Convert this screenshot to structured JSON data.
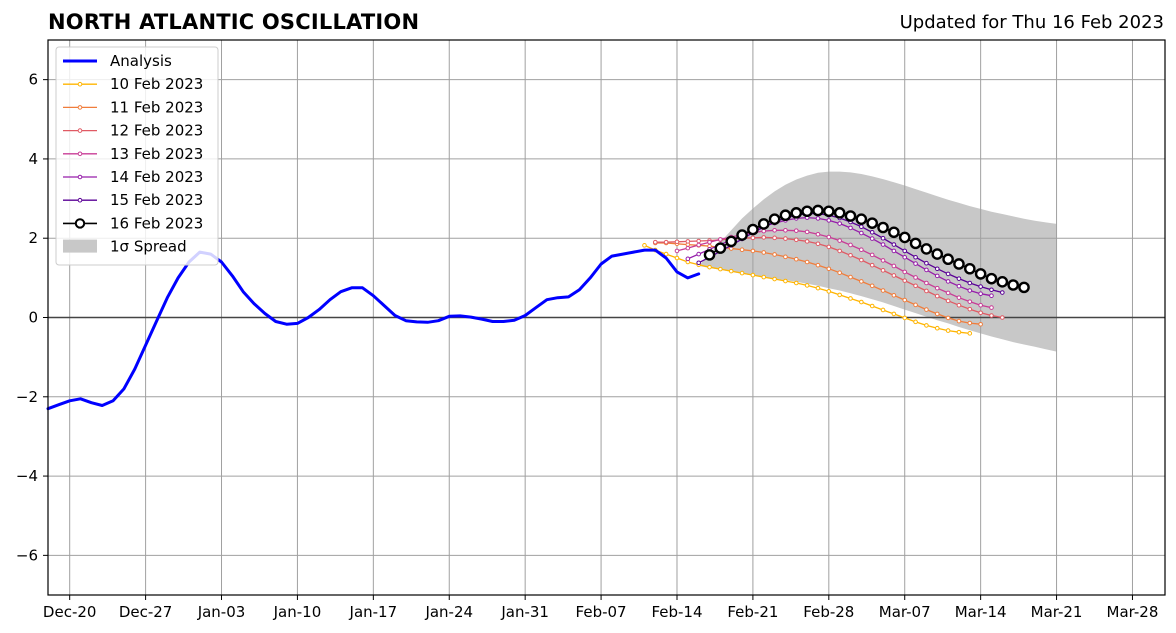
{
  "header": {
    "title": "NORTH ATLANTIC OSCILLATION",
    "subtitle": "Updated for Thu 16 Feb 2023"
  },
  "chart_data": {
    "type": "line",
    "title": "NORTH ATLANTIC OSCILLATION",
    "subtitle": "Updated for Thu 16 Feb 2023",
    "xlabel": "",
    "ylabel": "",
    "x_start": "2022-12-18",
    "xlim": [
      "2022-12-18",
      "2023-03-31"
    ],
    "ylim": [
      -7,
      7
    ],
    "x_ticks": [
      {
        "date": "2022-12-20",
        "label": "Dec-20"
      },
      {
        "date": "2022-12-27",
        "label": "Dec-27"
      },
      {
        "date": "2023-01-03",
        "label": "Jan-03"
      },
      {
        "date": "2023-01-10",
        "label": "Jan-10"
      },
      {
        "date": "2023-01-17",
        "label": "Jan-17"
      },
      {
        "date": "2023-01-24",
        "label": "Jan-24"
      },
      {
        "date": "2023-01-31",
        "label": "Jan-31"
      },
      {
        "date": "2023-02-07",
        "label": "Feb-07"
      },
      {
        "date": "2023-02-14",
        "label": "Feb-14"
      },
      {
        "date": "2023-02-21",
        "label": "Feb-21"
      },
      {
        "date": "2023-02-28",
        "label": "Feb-28"
      },
      {
        "date": "2023-03-07",
        "label": "Mar-07"
      },
      {
        "date": "2023-03-14",
        "label": "Mar-14"
      },
      {
        "date": "2023-03-21",
        "label": "Mar-21"
      },
      {
        "date": "2023-03-28",
        "label": "Mar-28"
      }
    ],
    "y_ticks": [
      {
        "value": -6,
        "label": "−6"
      },
      {
        "value": -4,
        "label": "−4"
      },
      {
        "value": -2,
        "label": "−2"
      },
      {
        "value": 0,
        "label": "0"
      },
      {
        "value": 2,
        "label": "2"
      },
      {
        "value": 4,
        "label": "4"
      },
      {
        "value": 6,
        "label": "6"
      }
    ],
    "grid": true,
    "legend_position": "top-left",
    "analysis": {
      "name": "Analysis",
      "color": "#0000ff",
      "points": [
        [
          "2022-12-18",
          -2.3
        ],
        [
          "2022-12-19",
          -2.2
        ],
        [
          "2022-12-20",
          -2.1
        ],
        [
          "2022-12-21",
          -2.05
        ],
        [
          "2022-12-22",
          -2.15
        ],
        [
          "2022-12-23",
          -2.22
        ],
        [
          "2022-12-24",
          -2.1
        ],
        [
          "2022-12-25",
          -1.8
        ],
        [
          "2022-12-26",
          -1.3
        ],
        [
          "2022-12-27",
          -0.7
        ],
        [
          "2022-12-28",
          -0.1
        ],
        [
          "2022-12-29",
          0.5
        ],
        [
          "2022-12-30",
          1.0
        ],
        [
          "2022-12-31",
          1.4
        ],
        [
          "2023-01-01",
          1.65
        ],
        [
          "2023-01-02",
          1.6
        ],
        [
          "2023-01-03",
          1.4
        ],
        [
          "2023-01-04",
          1.05
        ],
        [
          "2023-01-05",
          0.65
        ],
        [
          "2023-01-06",
          0.35
        ],
        [
          "2023-01-07",
          0.1
        ],
        [
          "2023-01-08",
          -0.1
        ],
        [
          "2023-01-09",
          -0.17
        ],
        [
          "2023-01-10",
          -0.15
        ],
        [
          "2023-01-11",
          0.0
        ],
        [
          "2023-01-12",
          0.2
        ],
        [
          "2023-01-13",
          0.45
        ],
        [
          "2023-01-14",
          0.65
        ],
        [
          "2023-01-15",
          0.75
        ],
        [
          "2023-01-16",
          0.75
        ],
        [
          "2023-01-17",
          0.55
        ],
        [
          "2023-01-18",
          0.3
        ],
        [
          "2023-01-19",
          0.05
        ],
        [
          "2023-01-20",
          -0.08
        ],
        [
          "2023-01-21",
          -0.11
        ],
        [
          "2023-01-22",
          -0.12
        ],
        [
          "2023-01-23",
          -0.08
        ],
        [
          "2023-01-24",
          0.03
        ],
        [
          "2023-01-25",
          0.04
        ],
        [
          "2023-01-26",
          0.01
        ],
        [
          "2023-01-27",
          -0.04
        ],
        [
          "2023-01-28",
          -0.1
        ],
        [
          "2023-01-29",
          -0.1
        ],
        [
          "2023-01-30",
          -0.07
        ],
        [
          "2023-01-31",
          0.05
        ],
        [
          "2023-02-01",
          0.25
        ],
        [
          "2023-02-02",
          0.45
        ],
        [
          "2023-02-03",
          0.5
        ],
        [
          "2023-02-04",
          0.52
        ],
        [
          "2023-02-05",
          0.7
        ],
        [
          "2023-02-06",
          1.0
        ],
        [
          "2023-02-07",
          1.35
        ],
        [
          "2023-02-08",
          1.55
        ],
        [
          "2023-02-09",
          1.6
        ],
        [
          "2023-02-10",
          1.65
        ],
        [
          "2023-02-11",
          1.7
        ],
        [
          "2023-02-12",
          1.7
        ],
        [
          "2023-02-13",
          1.5
        ],
        [
          "2023-02-14",
          1.15
        ],
        [
          "2023-02-15",
          1.0
        ],
        [
          "2023-02-16",
          1.1
        ]
      ]
    },
    "forecasts": [
      {
        "name": "10 Feb 2023",
        "color": "#ffb400",
        "start": "2023-02-11",
        "marker": "small",
        "values": [
          1.82,
          1.7,
          1.6,
          1.5,
          1.4,
          1.33,
          1.27,
          1.22,
          1.17,
          1.12,
          1.07,
          1.02,
          0.97,
          0.92,
          0.87,
          0.81,
          0.74,
          0.66,
          0.57,
          0.48,
          0.39,
          0.29,
          0.19,
          0.09,
          -0.01,
          -0.11,
          -0.2,
          -0.27,
          -0.33,
          -0.37,
          -0.4
        ]
      },
      {
        "name": "11 Feb 2023",
        "color": "#f07d3c",
        "start": "2023-02-12",
        "marker": "small",
        "values": [
          1.88,
          1.88,
          1.86,
          1.84,
          1.82,
          1.8,
          1.77,
          1.74,
          1.71,
          1.68,
          1.64,
          1.59,
          1.53,
          1.47,
          1.4,
          1.32,
          1.23,
          1.13,
          1.02,
          0.91,
          0.8,
          0.68,
          0.56,
          0.44,
          0.32,
          0.2,
          0.09,
          -0.01,
          -0.09,
          -0.14,
          -0.17
        ]
      },
      {
        "name": "12 Feb 2023",
        "color": "#e05a64",
        "start": "2023-02-12",
        "marker": "small",
        "values": [
          1.9,
          1.9,
          1.91,
          1.92,
          1.93,
          1.94,
          1.96,
          1.98,
          2.0,
          2.01,
          2.02,
          2.01,
          1.99,
          1.96,
          1.92,
          1.86,
          1.78,
          1.68,
          1.57,
          1.45,
          1.32,
          1.19,
          1.06,
          0.93,
          0.8,
          0.67,
          0.54,
          0.42,
          0.31,
          0.21,
          0.12,
          0.05,
          0.0
        ]
      },
      {
        "name": "13 Feb 2023",
        "color": "#c83c96",
        "start": "2023-02-14",
        "marker": "small",
        "values": [
          1.68,
          1.75,
          1.83,
          1.9,
          1.97,
          2.03,
          2.09,
          2.14,
          2.18,
          2.2,
          2.2,
          2.19,
          2.16,
          2.1,
          2.03,
          1.94,
          1.83,
          1.71,
          1.58,
          1.44,
          1.3,
          1.15,
          1.01,
          0.87,
          0.74,
          0.62,
          0.5,
          0.4,
          0.31,
          0.25
        ]
      },
      {
        "name": "14 Feb 2023",
        "color": "#961eaa",
        "start": "2023-02-15",
        "marker": "small",
        "values": [
          1.48,
          1.6,
          1.72,
          1.84,
          1.96,
          2.08,
          2.2,
          2.3,
          2.38,
          2.45,
          2.5,
          2.52,
          2.5,
          2.45,
          2.37,
          2.26,
          2.13,
          1.99,
          1.84,
          1.68,
          1.52,
          1.36,
          1.2,
          1.05,
          0.91,
          0.79,
          0.68,
          0.6,
          0.55
        ]
      },
      {
        "name": "15 Feb 2023",
        "color": "#5a0096",
        "start": "2023-02-16",
        "marker": "small",
        "values": [
          1.38,
          1.52,
          1.67,
          1.82,
          1.98,
          2.14,
          2.28,
          2.41,
          2.51,
          2.58,
          2.62,
          2.62,
          2.58,
          2.51,
          2.41,
          2.29,
          2.15,
          2.0,
          1.84,
          1.68,
          1.52,
          1.37,
          1.23,
          1.1,
          0.98,
          0.87,
          0.78,
          0.7,
          0.63
        ]
      },
      {
        "name": "16 Feb 2023",
        "color": "#000000",
        "start": "2023-02-17",
        "marker": "large",
        "values": [
          1.58,
          1.75,
          1.92,
          2.08,
          2.22,
          2.36,
          2.48,
          2.58,
          2.64,
          2.68,
          2.7,
          2.68,
          2.64,
          2.56,
          2.48,
          2.38,
          2.27,
          2.15,
          2.02,
          1.87,
          1.73,
          1.6,
          1.47,
          1.35,
          1.23,
          1.1,
          0.98,
          0.9,
          0.82,
          0.76
        ]
      }
    ],
    "spread": {
      "name": "1σ Spread",
      "color": "#c8c8c8",
      "start": "2023-02-16",
      "upper": [
        1.3,
        1.6,
        1.9,
        2.2,
        2.5,
        2.75,
        2.98,
        3.18,
        3.35,
        3.48,
        3.58,
        3.65,
        3.68,
        3.68,
        3.66,
        3.62,
        3.56,
        3.49,
        3.41,
        3.33,
        3.24,
        3.15,
        3.06,
        2.97,
        2.89,
        2.81,
        2.74,
        2.67,
        2.61,
        2.55,
        2.49,
        2.44,
        2.4,
        2.36
      ],
      "lower": [
        1.3,
        1.25,
        1.2,
        1.15,
        1.1,
        1.06,
        1.02,
        0.98,
        0.94,
        0.9,
        0.85,
        0.8,
        0.74,
        0.68,
        0.61,
        0.54,
        0.46,
        0.38,
        0.29,
        0.2,
        0.11,
        0.02,
        -0.07,
        -0.15,
        -0.24,
        -0.32,
        -0.4,
        -0.48,
        -0.55,
        -0.62,
        -0.68,
        -0.74,
        -0.8,
        -0.86
      ]
    }
  }
}
